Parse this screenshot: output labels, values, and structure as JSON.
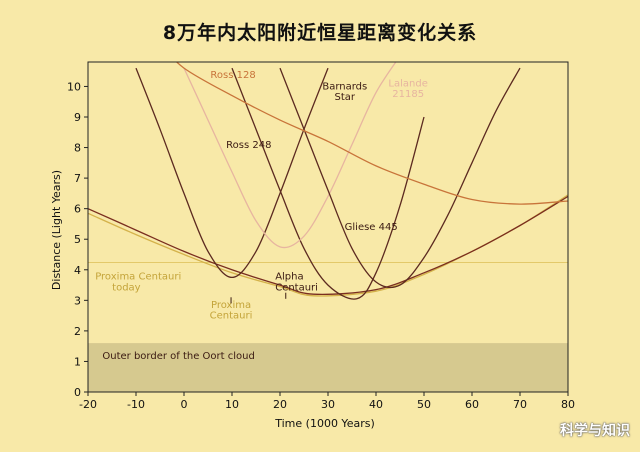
{
  "chart_data": {
    "type": "line",
    "title": "8万年内太阳附近恒星距离变化关系",
    "xlabel": "Time (1000 Years)",
    "ylabel": "Distance (Light Years)",
    "xlim": [
      -20,
      80
    ],
    "ylim": [
      0,
      10.8
    ],
    "xticks": [
      -20,
      -10,
      0,
      10,
      20,
      30,
      40,
      50,
      60,
      70,
      80
    ],
    "yticks": [
      0,
      1,
      2,
      3,
      4,
      5,
      6,
      7,
      8,
      9,
      10
    ],
    "grid": false,
    "oort_cloud": {
      "label": "Outer border of the Oort cloud",
      "y_max": 1.6,
      "color": "#d6c98f"
    },
    "reference_line": {
      "y": 4.24,
      "color": "#e3c96a"
    },
    "series": [
      {
        "name": "Proxima Centauri",
        "color": "#d4b24a",
        "x": [
          -20,
          -10,
          0,
          10,
          20,
          27,
          40,
          50,
          60,
          70,
          80
        ],
        "y": [
          5.85,
          5.15,
          4.5,
          3.9,
          3.45,
          3.15,
          3.3,
          3.85,
          4.6,
          5.45,
          6.45
        ]
      },
      {
        "name": "Alpha Centauri",
        "color": "#7a2e1f",
        "x": [
          -20,
          -10,
          0,
          10,
          20,
          27,
          40,
          50,
          60,
          70,
          80
        ],
        "y": [
          6.0,
          5.3,
          4.6,
          4.0,
          3.5,
          3.2,
          3.35,
          3.9,
          4.6,
          5.45,
          6.4
        ]
      },
      {
        "name": "Ross 248",
        "color": "#5c2a20",
        "x": [
          -10,
          -5,
          0,
          5,
          10,
          15,
          20,
          25,
          30
        ],
        "y": [
          10.6,
          8.6,
          6.5,
          4.6,
          3.75,
          4.6,
          6.5,
          8.6,
          10.6
        ]
      },
      {
        "name": "Barnards Star",
        "color": "#5c2a20",
        "x": [
          10,
          15,
          20,
          25,
          30,
          36,
          40,
          45,
          50
        ],
        "y": [
          10.6,
          8.6,
          6.6,
          4.7,
          3.5,
          3.05,
          3.9,
          6.1,
          9.0
        ]
      },
      {
        "name": "Lalande 21185",
        "color": "#e7b5a0",
        "x": [
          0,
          5,
          10,
          15,
          20,
          25,
          30,
          35,
          40,
          45
        ],
        "y": [
          10.6,
          8.9,
          7.2,
          5.6,
          4.75,
          5.1,
          6.4,
          8.1,
          9.8,
          11.0
        ]
      },
      {
        "name": "Gliese 445",
        "color": "#5c2a20",
        "x": [
          20,
          25,
          30,
          35,
          40,
          45,
          50,
          55,
          60,
          65,
          70
        ],
        "y": [
          10.6,
          8.6,
          6.6,
          4.7,
          3.6,
          3.5,
          4.4,
          5.8,
          7.5,
          9.2,
          10.6
        ]
      },
      {
        "name": "Ross 128",
        "color": "#c8743a",
        "x": [
          -5,
          0,
          10,
          20,
          30,
          40,
          50,
          60,
          70,
          80
        ],
        "y": [
          11.4,
          10.6,
          9.7,
          8.9,
          8.2,
          7.4,
          6.8,
          6.3,
          6.15,
          6.25
        ]
      }
    ],
    "annotations": [
      {
        "text": "Ross 128",
        "color": "#c8743a",
        "x": 5.5,
        "y": 10.28,
        "anchor": "start"
      },
      {
        "text": "Barnards",
        "color": "#3a1a12",
        "x": 33.5,
        "y": 9.9,
        "anchor": "middle"
      },
      {
        "text": "Star",
        "color": "#3a1a12",
        "x": 33.5,
        "y": 9.55,
        "anchor": "middle"
      },
      {
        "text": "Lalande",
        "color": "#e7b5a0",
        "x": 46.7,
        "y": 10.0,
        "anchor": "middle"
      },
      {
        "text": "21185",
        "color": "#e7b5a0",
        "x": 46.7,
        "y": 9.65,
        "anchor": "middle"
      },
      {
        "text": "Ross 248",
        "color": "#3a1a12",
        "x": 13.5,
        "y": 7.98,
        "anchor": "middle"
      },
      {
        "text": "Gliese 445",
        "color": "#3a1a12",
        "x": 39.0,
        "y": 5.3,
        "anchor": "middle"
      },
      {
        "text": "Proxima Centauri",
        "color": "#c4a43a",
        "x": -18.5,
        "y": 3.68,
        "anchor": "start"
      },
      {
        "text": "today",
        "color": "#c4a43a",
        "x": -12.0,
        "y": 3.33,
        "anchor": "middle"
      },
      {
        "text": "Alpha",
        "color": "#3a1a12",
        "x": 19.0,
        "y": 3.68,
        "anchor": "start"
      },
      {
        "text": "Centauri",
        "color": "#3a1a12",
        "x": 19.0,
        "y": 3.33,
        "anchor": "start"
      },
      {
        "text": "Proxima",
        "color": "#c4a43a",
        "x": 9.8,
        "y": 2.75,
        "anchor": "middle"
      },
      {
        "text": "Centauri",
        "color": "#c4a43a",
        "x": 9.8,
        "y": 2.4,
        "anchor": "middle"
      },
      {
        "text": "Outer border of the Oort cloud",
        "color": "#3a1a12",
        "x": -17.0,
        "y": 1.08,
        "anchor": "start"
      }
    ]
  },
  "watermark": "科学与知识"
}
